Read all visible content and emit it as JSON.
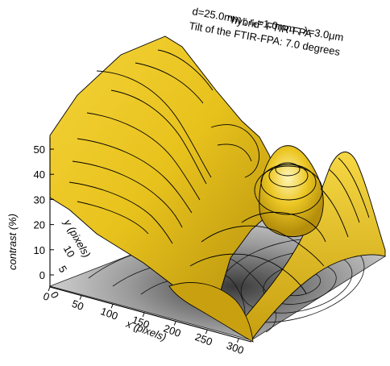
{
  "chart_data": {
    "type": "surface",
    "title_lines": [
      "\"hybrid\" FTIR-FPA",
      "d=25.0mm ; rₑ=1.0mm ; λ=3.0μm",
      "Tilt of the FTIR-FPA:  7.0 degrees"
    ],
    "xlabel": "x (pixels)",
    "ylabel": "y (pixels)",
    "zlabel": "contrast (%)",
    "x_ticks": [
      "0",
      "50",
      "100",
      "150",
      "200",
      "250",
      "300"
    ],
    "y_ticks": [
      "0",
      "5",
      "10"
    ],
    "z_ticks": [
      "0",
      "10",
      "20",
      "30",
      "40",
      "50"
    ],
    "xlim": [
      0,
      320
    ],
    "zlim": [
      0,
      55
    ],
    "surface_color": "#e8c21c",
    "floor_contour_color": "#333333",
    "grid": false
  },
  "colors": {
    "surface_light": "#fff3a0",
    "surface_mid": "#e8c21c",
    "surface_dark": "#9a7a08",
    "floor_light": "#f2f2f2",
    "floor_dark": "#6a6a6a"
  }
}
